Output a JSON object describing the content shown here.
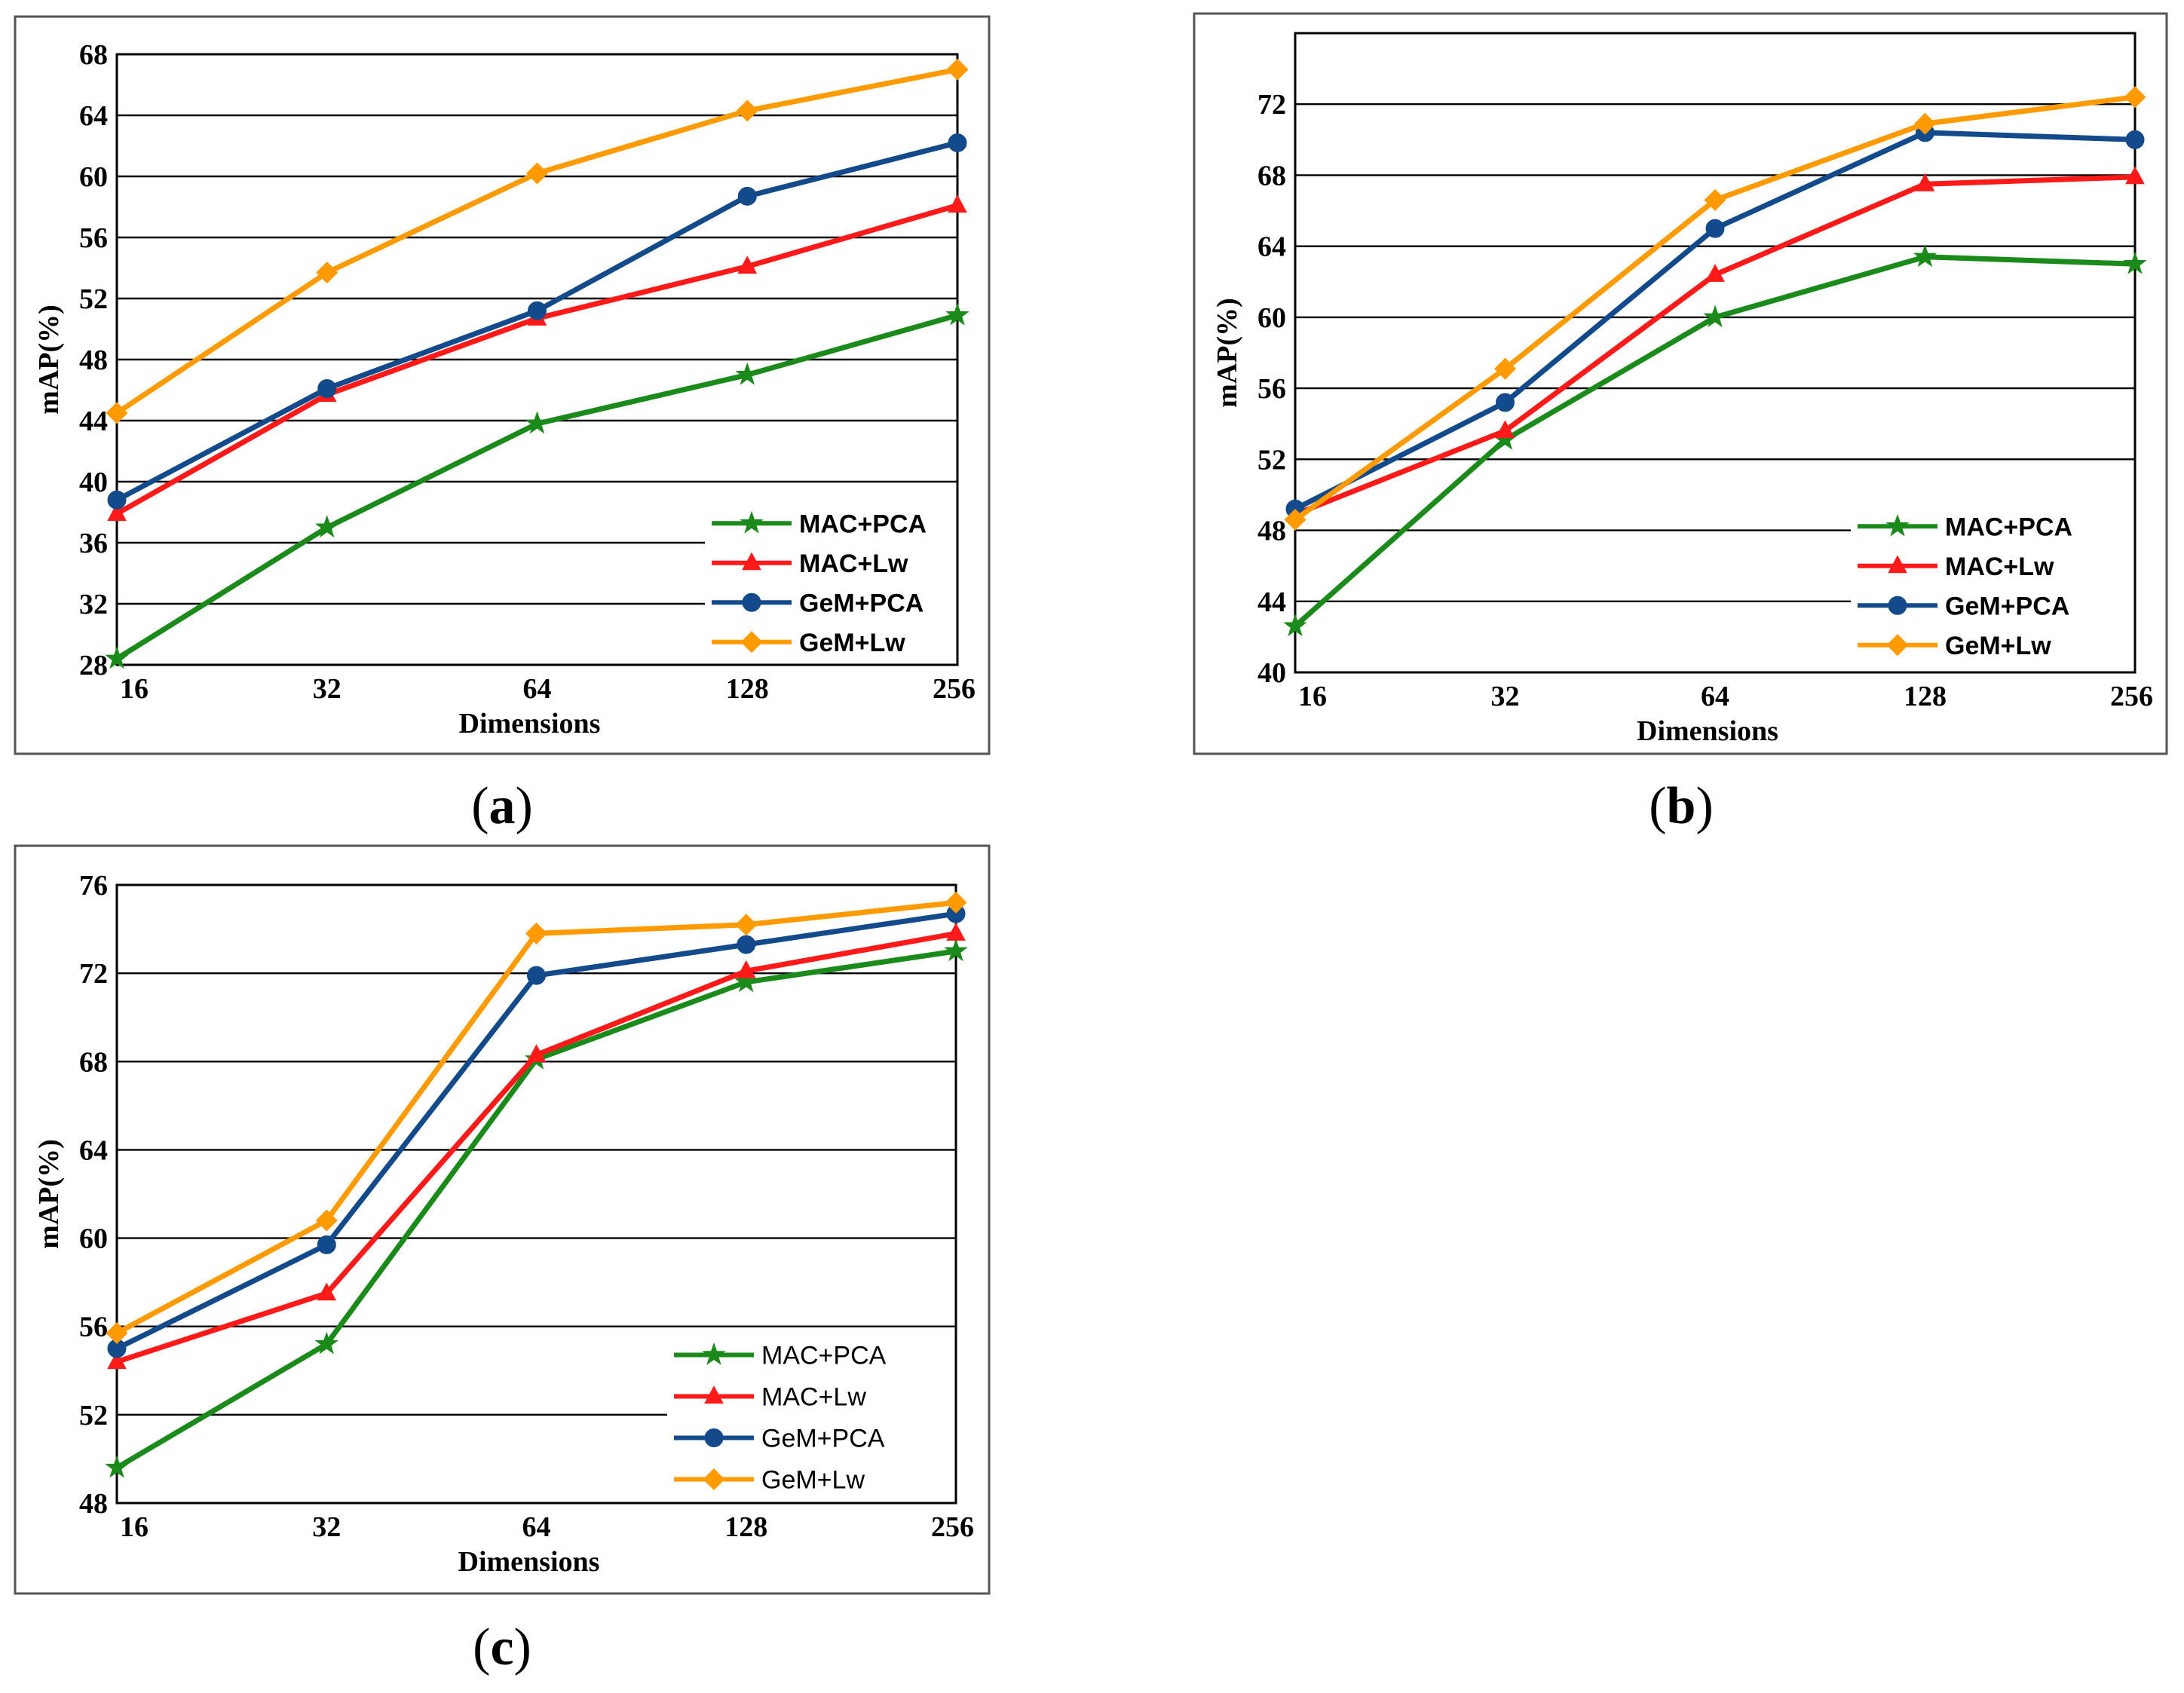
{
  "chart_data": [
    {
      "id": "a",
      "type": "line",
      "caption_letter": "a",
      "xlabel": "Dimensions",
      "ylabel": "mAP(%)",
      "categories": [
        "16",
        "32",
        "64",
        "128",
        "256"
      ],
      "ylim": [
        28,
        68
      ],
      "yticks": [
        "28",
        "32",
        "36",
        "40",
        "44",
        "48",
        "52",
        "56",
        "60",
        "64",
        "68"
      ],
      "series": [
        {
          "name": "MAC+PCA",
          "color": "#1a8a1a",
          "marker": "star",
          "values": [
            28.4,
            37.0,
            43.8,
            47.0,
            50.9
          ]
        },
        {
          "name": "MAC+Lw",
          "color": "#ff1a1a",
          "marker": "triangle",
          "values": [
            37.9,
            45.7,
            50.7,
            54.1,
            58.1
          ]
        },
        {
          "name": "GeM+PCA",
          "color": "#124a8c",
          "marker": "circle",
          "values": [
            38.8,
            46.1,
            51.2,
            58.7,
            62.2
          ]
        },
        {
          "name": "GeM+Lw",
          "color": "#ff9a00",
          "marker": "diamond",
          "values": [
            44.5,
            53.7,
            60.2,
            64.3,
            67.0
          ]
        }
      ]
    },
    {
      "id": "b",
      "type": "line",
      "caption_letter": "b",
      "xlabel": "Dimensions",
      "ylabel": "mAP(%)",
      "categories": [
        "16",
        "32",
        "64",
        "128",
        "256"
      ],
      "ylim": [
        40,
        76
      ],
      "yticks": [
        "40",
        "44",
        "48",
        "52",
        "56",
        "60",
        "64",
        "68",
        "72"
      ],
      "series": [
        {
          "name": "MAC+PCA",
          "color": "#1a8a1a",
          "marker": "star",
          "values": [
            42.6,
            53.1,
            60.0,
            63.4,
            63.0
          ]
        },
        {
          "name": "MAC+Lw",
          "color": "#ff1a1a",
          "marker": "triangle",
          "values": [
            48.9,
            53.6,
            62.4,
            67.5,
            67.9
          ]
        },
        {
          "name": "GeM+PCA",
          "color": "#124a8c",
          "marker": "circle",
          "values": [
            49.2,
            55.2,
            65.0,
            70.4,
            70.0
          ]
        },
        {
          "name": "GeM+Lw",
          "color": "#ff9a00",
          "marker": "diamond",
          "values": [
            48.6,
            57.1,
            66.6,
            70.9,
            72.4
          ]
        }
      ]
    },
    {
      "id": "c",
      "type": "line",
      "caption_letter": "c",
      "xlabel": "Dimensions",
      "ylabel": "mAP(%)",
      "categories": [
        "16",
        "32",
        "64",
        "128",
        "256"
      ],
      "ylim": [
        48,
        76
      ],
      "yticks": [
        "48",
        "52",
        "56",
        "60",
        "64",
        "68",
        "72",
        "76"
      ],
      "series": [
        {
          "name": "MAC+PCA",
          "color": "#1a8a1a",
          "marker": "star",
          "values": [
            49.6,
            55.2,
            68.1,
            71.6,
            73.0
          ]
        },
        {
          "name": "MAC+Lw",
          "color": "#ff1a1a",
          "marker": "triangle",
          "values": [
            54.4,
            57.5,
            68.3,
            72.1,
            73.8
          ]
        },
        {
          "name": "GeM+PCA",
          "color": "#124a8c",
          "marker": "circle",
          "values": [
            55.0,
            59.7,
            71.9,
            73.3,
            74.7
          ]
        },
        {
          "name": "GeM+Lw",
          "color": "#ff9a00",
          "marker": "diamond",
          "values": [
            55.7,
            60.8,
            73.8,
            74.2,
            75.2
          ]
        }
      ]
    }
  ]
}
